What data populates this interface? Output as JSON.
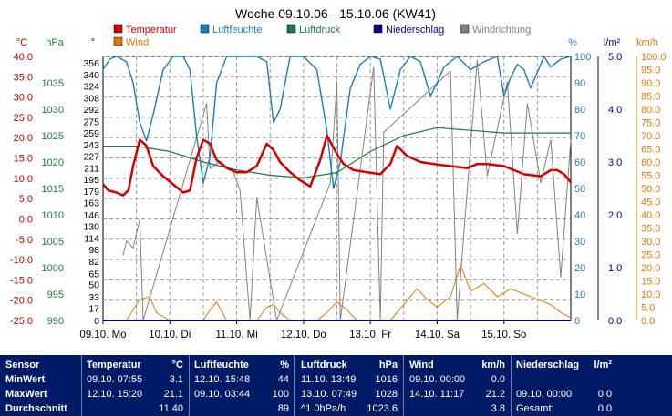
{
  "chart_data": {
    "type": "line",
    "title": "Woche 09.10.06 - 15.10.06 (KW41)",
    "x_dates": [
      "09.10.",
      "10.10.",
      "11.10.",
      "12.10.",
      "13.10.",
      "14.10.",
      "15.10."
    ],
    "x_days": [
      "Mo",
      "Di",
      "Mi",
      "Do",
      "Fr",
      "Sa",
      "So"
    ],
    "x_range_days": [
      0,
      7
    ],
    "grid": true,
    "axes": {
      "temp": {
        "unit": "°C",
        "range": [
          -25,
          40
        ],
        "ticks": [
          "-25.0",
          "-20.0",
          "-15.0",
          "-10.0",
          "-5.0",
          "0.0",
          "5.0",
          "10.0",
          "15.0",
          "20.0",
          "25.0",
          "30.0",
          "35.0",
          "40.0"
        ]
      },
      "pressure": {
        "unit": "hPa",
        "range": [
          990,
          1040
        ],
        "ticks": [
          "990",
          "995",
          "1000",
          "1005",
          "1010",
          "1015",
          "1020",
          "1025",
          "1030",
          "1035"
        ]
      },
      "direction": {
        "unit": "°",
        "range": [
          0,
          365
        ],
        "ticks": [
          "0",
          "17",
          "33",
          "50",
          "65",
          "82",
          "98",
          "114",
          "130",
          "146",
          "163",
          "179",
          "195",
          "211",
          "227",
          "243",
          "259",
          "275",
          "292",
          "308",
          "324",
          "340",
          "356"
        ]
      },
      "humidity": {
        "unit": "%",
        "range": [
          0,
          100
        ],
        "ticks": [
          "0",
          "10",
          "20",
          "30",
          "40",
          "50",
          "60",
          "70",
          "80",
          "90",
          "100"
        ]
      },
      "rain": {
        "unit": "l/m²",
        "range": [
          0,
          5
        ],
        "ticks": [
          "0.0",
          "1.0",
          "2.0",
          "3.0",
          "4.0",
          "5.0"
        ]
      },
      "wind": {
        "unit": "km/h",
        "range": [
          0,
          100
        ],
        "ticks": [
          "0.0",
          "5.0",
          "10.0",
          "15.0",
          "20.0",
          "25.0",
          "30.0",
          "35.0",
          "40.0",
          "45.0",
          "50.0",
          "55.0",
          "60.0",
          "65.0",
          "70.0",
          "75.0",
          "80.0",
          "85.0",
          "90.0",
          "95.0",
          "100.0"
        ]
      }
    },
    "legend": [
      {
        "name": "Temperatur",
        "color": "#d40000"
      },
      {
        "name": "Luftfeuchte",
        "color": "#1a7fb8"
      },
      {
        "name": "Luftdruck",
        "color": "#1c7a3a"
      },
      {
        "name": "Niederschlag",
        "color": "#00008b"
      },
      {
        "name": "Windrichtung",
        "color": "#808080"
      },
      {
        "name": "Wind",
        "color": "#e07800"
      }
    ],
    "series": [
      {
        "name": "Temperatur",
        "axis": "temp",
        "color": "#d40000",
        "x": [
          0,
          0.08,
          0.2,
          0.3,
          0.38,
          0.45,
          0.55,
          0.65,
          0.75,
          0.9,
          1.05,
          1.2,
          1.3,
          1.4,
          1.5,
          1.6,
          1.7,
          1.85,
          2.0,
          2.15,
          2.3,
          2.45,
          2.55,
          2.65,
          2.8,
          2.95,
          3.1,
          3.25,
          3.35,
          3.4,
          3.5,
          3.6,
          3.75,
          3.95,
          4.15,
          4.3,
          4.4,
          4.55,
          4.75,
          4.95,
          5.2,
          5.45,
          5.6,
          5.75,
          6.0,
          6.3,
          6.55,
          6.7,
          6.8,
          6.9,
          7.0
        ],
        "y": [
          8.5,
          7,
          6.5,
          5.8,
          7,
          13,
          19.5,
          18,
          13,
          10.5,
          8.5,
          6.5,
          7,
          15,
          19.5,
          18.5,
          14.5,
          12.5,
          11.5,
          11.5,
          13,
          18.5,
          17,
          14,
          11.5,
          9.5,
          8,
          14.5,
          20.5,
          19,
          16,
          13.5,
          12,
          11.5,
          11,
          13.5,
          18,
          15.5,
          14,
          13.5,
          13,
          12.5,
          13.5,
          13.5,
          13,
          11,
          10.5,
          12,
          12,
          11,
          9
        ]
      },
      {
        "name": "Luftfeuchte",
        "axis": "humidity",
        "color": "#1a7fb8",
        "x": [
          0,
          0.1,
          0.2,
          0.35,
          0.45,
          0.55,
          0.65,
          0.75,
          0.9,
          1.05,
          1.2,
          1.3,
          1.4,
          1.5,
          1.6,
          1.7,
          1.85,
          2.0,
          2.15,
          2.3,
          2.45,
          2.55,
          2.65,
          2.8,
          3.0,
          3.2,
          3.35,
          3.45,
          3.55,
          3.7,
          3.85,
          4.0,
          4.15,
          4.3,
          4.45,
          4.6,
          4.75,
          4.9,
          5.0,
          5.1,
          5.3,
          5.5,
          5.7,
          5.9,
          6.0,
          6.1,
          6.2,
          6.3,
          6.4,
          6.5,
          6.6,
          6.7,
          6.85,
          7.0
        ],
        "y": [
          95,
          99,
          100,
          98,
          90,
          75,
          68,
          78,
          95,
          100,
          100,
          95,
          70,
          52,
          62,
          90,
          100,
          100,
          100,
          100,
          98,
          75,
          80,
          100,
          100,
          95,
          72,
          50,
          60,
          88,
          97,
          100,
          99,
          80,
          95,
          100,
          98,
          85,
          90,
          96,
          100,
          95,
          98,
          100,
          85,
          92,
          97,
          95,
          88,
          94,
          100,
          96,
          99,
          100
        ]
      },
      {
        "name": "Luftdruck",
        "axis": "pressure",
        "color": "#1c7a3a",
        "x": [
          0,
          0.5,
          1.0,
          1.5,
          2.0,
          2.5,
          3.0,
          3.5,
          4.0,
          4.5,
          5.0,
          5.5,
          6.0,
          6.5,
          7.0
        ],
        "y": [
          1023,
          1023,
          1022,
          1020,
          1018.5,
          1017.5,
          1017,
          1018,
          1022,
          1025,
          1026.5,
          1026,
          1025.5,
          1025.5,
          1025.5
        ]
      },
      {
        "name": "Windrichtung",
        "axis": "direction",
        "color": "#808080",
        "x": [
          0.3,
          0.35,
          0.45,
          0.55,
          0.6,
          1.55,
          1.6,
          1.75,
          1.95,
          2.05,
          2.2,
          2.3,
          2.6,
          3.4,
          3.5,
          3.55,
          4.05,
          4.15,
          4.2,
          5.2,
          5.3,
          5.6,
          5.75,
          6.05,
          6.2,
          6.35,
          6.55,
          6.7,
          6.85,
          7.0
        ],
        "y": [
          90,
          110,
          100,
          140,
          0,
          300,
          210,
          220,
          205,
          180,
          0,
          170,
          0,
          190,
          330,
          0,
          350,
          0,
          260,
          345,
          0,
          360,
          200,
          330,
          120,
          300,
          190,
          250,
          60,
          250
        ]
      },
      {
        "name": "Wind",
        "axis": "wind",
        "color": "#e07800",
        "x": [
          0,
          0.35,
          0.45,
          0.55,
          0.7,
          0.8,
          1.0,
          1.5,
          1.6,
          1.7,
          1.85,
          2.3,
          2.45,
          2.55,
          2.65,
          2.8,
          3.2,
          3.35,
          3.5,
          3.65,
          3.8,
          4.3,
          4.5,
          4.7,
          4.85,
          5.0,
          5.2,
          5.35,
          5.5,
          5.7,
          5.9,
          6.1,
          6.3,
          6.5,
          6.7,
          6.85,
          7.0
        ],
        "y": [
          0,
          0,
          4,
          8,
          9,
          3,
          0,
          0,
          4,
          7,
          0,
          0,
          5,
          6,
          3,
          0,
          0,
          3,
          7,
          4,
          0,
          0,
          6,
          12,
          8,
          5,
          9,
          21,
          11,
          14,
          9,
          12,
          10,
          8,
          6,
          3,
          1
        ]
      },
      {
        "name": "Niederschlag",
        "axis": "rain",
        "color": "#00008b",
        "x": [
          0,
          7
        ],
        "y": [
          0,
          0
        ]
      }
    ]
  },
  "table": {
    "headers": {
      "sensor": "Sensor",
      "temp": "Temperatur",
      "temp_unit": "°C",
      "hum": "Luftfeuchte",
      "hum_unit": "%",
      "pres": "Luftdruck",
      "pres_unit": "hPa",
      "wind": "Wind",
      "wind_unit": "km/h",
      "rain": "Niederschlag",
      "rain_unit": "l/m²"
    },
    "labels": {
      "min": "MinWert",
      "max": "MaxWert",
      "avg": "Durchschnitt"
    },
    "min": {
      "temp_time": "09.10.  07:55",
      "temp_val": "3.1",
      "hum_time": "12.10.  15:48",
      "hum_val": "44",
      "pres_time": "11.10.  13:49",
      "pres_val": "1016",
      "wind_time": "09.10.  00:00",
      "wind_val": "0.0"
    },
    "max": {
      "temp_time": "12.10.  15:20",
      "temp_val": "21.1",
      "hum_time": "09.10.  03:44",
      "hum_val": "100",
      "pres_time": "13.10.  07:49",
      "pres_val": "1028",
      "wind_time": "14.10.  11:17",
      "wind_val": "21.2",
      "rain_time": "09.10.  00:00",
      "rain_val": "0.0"
    },
    "avg": {
      "temp_val": "11.40",
      "hum_val": "89",
      "pres_time": "^1.0hPa/h",
      "pres_val": "1023.6",
      "wind_val": "3.8",
      "rain_label": "Gesamt:",
      "rain_val": "0.0"
    }
  }
}
